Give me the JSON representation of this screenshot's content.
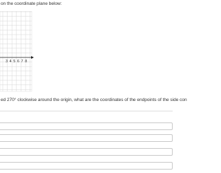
{
  "header": {
    "text": "on the coordinate plane below:"
  },
  "graph": {
    "x_labels": [
      "3",
      "4",
      "5",
      "6",
      "7",
      "8"
    ]
  },
  "question": {
    "text": "ed 270° clockwise around the origin, what are the coordinates of the endpoints of the side con"
  }
}
